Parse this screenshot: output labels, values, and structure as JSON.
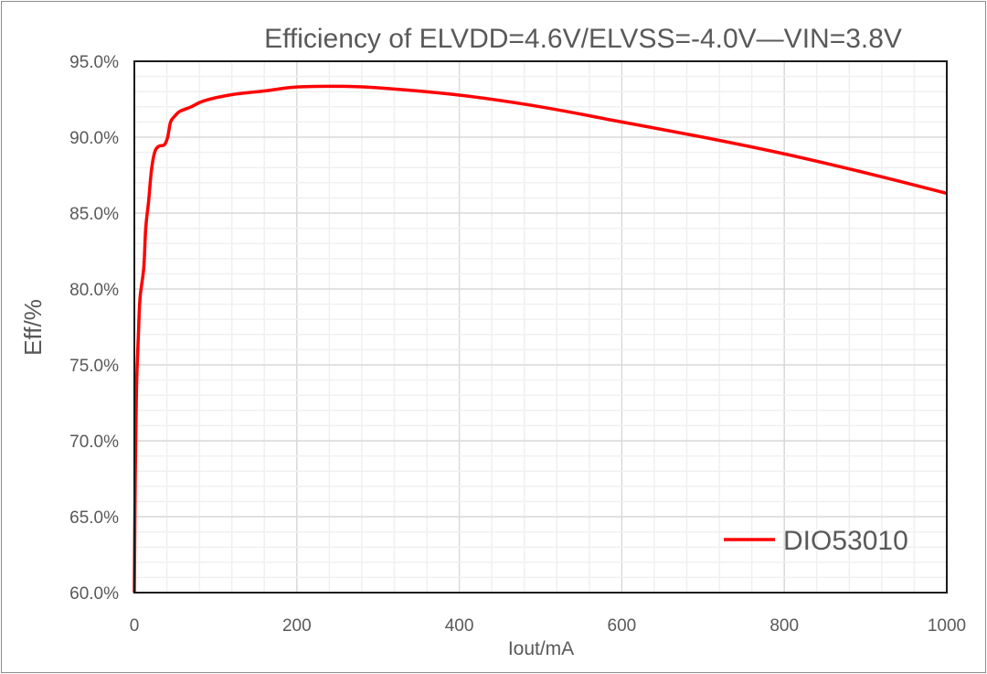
{
  "chart_data": {
    "type": "line",
    "title": "Efficiency of  ELVDD=4.6V/ELVSS=-4.0V—VIN=3.8V",
    "xlabel": "Iout/mA",
    "ylabel": "Eff/%",
    "xlim": [
      0,
      1000
    ],
    "ylim": [
      60,
      95
    ],
    "x_ticks": [
      "0",
      "200",
      "400",
      "600",
      "800",
      "1000"
    ],
    "y_ticks": [
      "60.0%",
      "65.0%",
      "70.0%",
      "75.0%",
      "80.0%",
      "85.0%",
      "90.0%",
      "95.0%"
    ],
    "grid": {
      "major": true,
      "minor": true
    },
    "legend_position": "bottom-right",
    "series": [
      {
        "name": "DIO53010",
        "color": "#ff0000",
        "x": [
          0,
          1,
          2.6,
          5,
          7,
          11.6,
          14,
          17.6,
          21,
          25,
          30,
          37,
          41,
          44.6,
          50,
          56,
          70,
          86,
          120,
          161,
          198,
          251,
          300,
          400,
          500,
          600,
          700,
          800,
          900,
          1000
        ],
        "y": [
          60,
          67,
          73.3,
          77,
          79.4,
          81.4,
          84,
          85.8,
          87.8,
          89.0,
          89.4,
          89.5,
          90.0,
          91.0,
          91.4,
          91.7,
          92.0,
          92.4,
          92.8,
          93.05,
          93.3,
          93.35,
          93.25,
          92.77,
          92.0,
          91.0,
          90.0,
          88.9,
          87.65,
          86.3
        ]
      }
    ]
  }
}
